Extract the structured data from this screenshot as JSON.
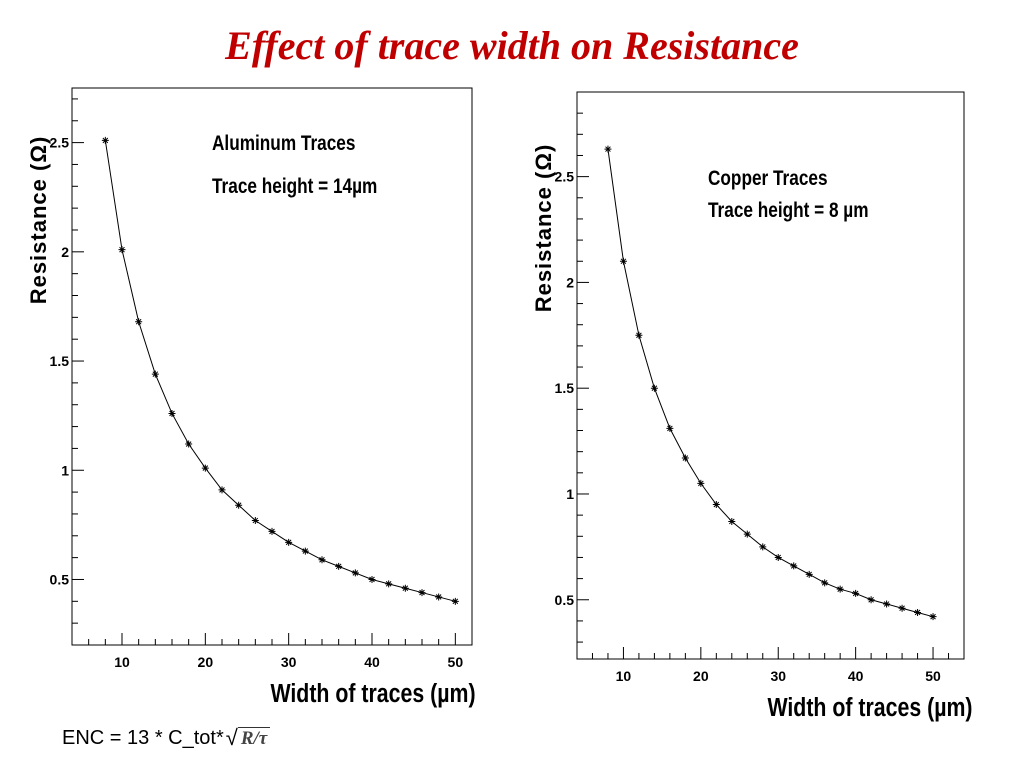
{
  "slide": {
    "title": "Effect of trace width on Resistance",
    "title_color": "#c00000"
  },
  "formula": {
    "prefix": "ENC = 13 * C_tot*",
    "radical": "√",
    "radicand": "R/τ"
  },
  "chart_data": [
    {
      "type": "line",
      "marker": "star",
      "annotation": [
        "Aluminum Traces",
        "Trace height = 14µm"
      ],
      "xlabel": "Width of traces (µm)",
      "ylabel": "Resistance (Ω)",
      "xlim": [
        4,
        52
      ],
      "ylim": [
        0.2,
        2.75
      ],
      "xticks": [
        10,
        20,
        30,
        40,
        50
      ],
      "xtick_labels": [
        "10",
        "20",
        "30",
        "40",
        "50"
      ],
      "yticks": [
        0.5,
        1,
        1.5,
        2,
        2.5
      ],
      "ytick_labels": [
        "0.5",
        "1",
        "1.5",
        "2",
        "2.5"
      ],
      "grid": false,
      "series": [
        {
          "x": [
            8,
            10,
            12,
            14,
            16,
            18,
            20,
            22,
            24,
            26,
            28,
            30,
            32,
            34,
            36,
            38,
            40,
            42,
            44,
            46,
            48,
            50
          ],
          "y": [
            2.51,
            2.01,
            1.68,
            1.44,
            1.26,
            1.12,
            1.01,
            0.91,
            0.84,
            0.77,
            0.72,
            0.67,
            0.63,
            0.59,
            0.56,
            0.53,
            0.5,
            0.48,
            0.46,
            0.44,
            0.42,
            0.4
          ]
        }
      ]
    },
    {
      "type": "line",
      "marker": "star",
      "annotation": [
        "Copper Traces",
        "Trace height = 8 µm"
      ],
      "xlabel": "Width of traces (µm)",
      "ylabel": "Resistance (Ω)",
      "xlim": [
        4,
        54
      ],
      "ylim": [
        0.22,
        2.9
      ],
      "xticks": [
        10,
        20,
        30,
        40,
        50
      ],
      "xtick_labels": [
        "10",
        "20",
        "30",
        "40",
        "50"
      ],
      "yticks": [
        0.5,
        1,
        1.5,
        2,
        2.5
      ],
      "ytick_labels": [
        "0.5",
        "1",
        "1.5",
        "2",
        "2.5"
      ],
      "grid": false,
      "series": [
        {
          "x": [
            8,
            10,
            12,
            14,
            16,
            18,
            20,
            22,
            24,
            26,
            28,
            30,
            32,
            34,
            36,
            38,
            40,
            42,
            44,
            46,
            48,
            50
          ],
          "y": [
            2.63,
            2.1,
            1.75,
            1.5,
            1.31,
            1.17,
            1.05,
            0.95,
            0.87,
            0.81,
            0.75,
            0.7,
            0.66,
            0.62,
            0.58,
            0.55,
            0.53,
            0.5,
            0.48,
            0.46,
            0.44,
            0.42
          ]
        }
      ]
    }
  ]
}
